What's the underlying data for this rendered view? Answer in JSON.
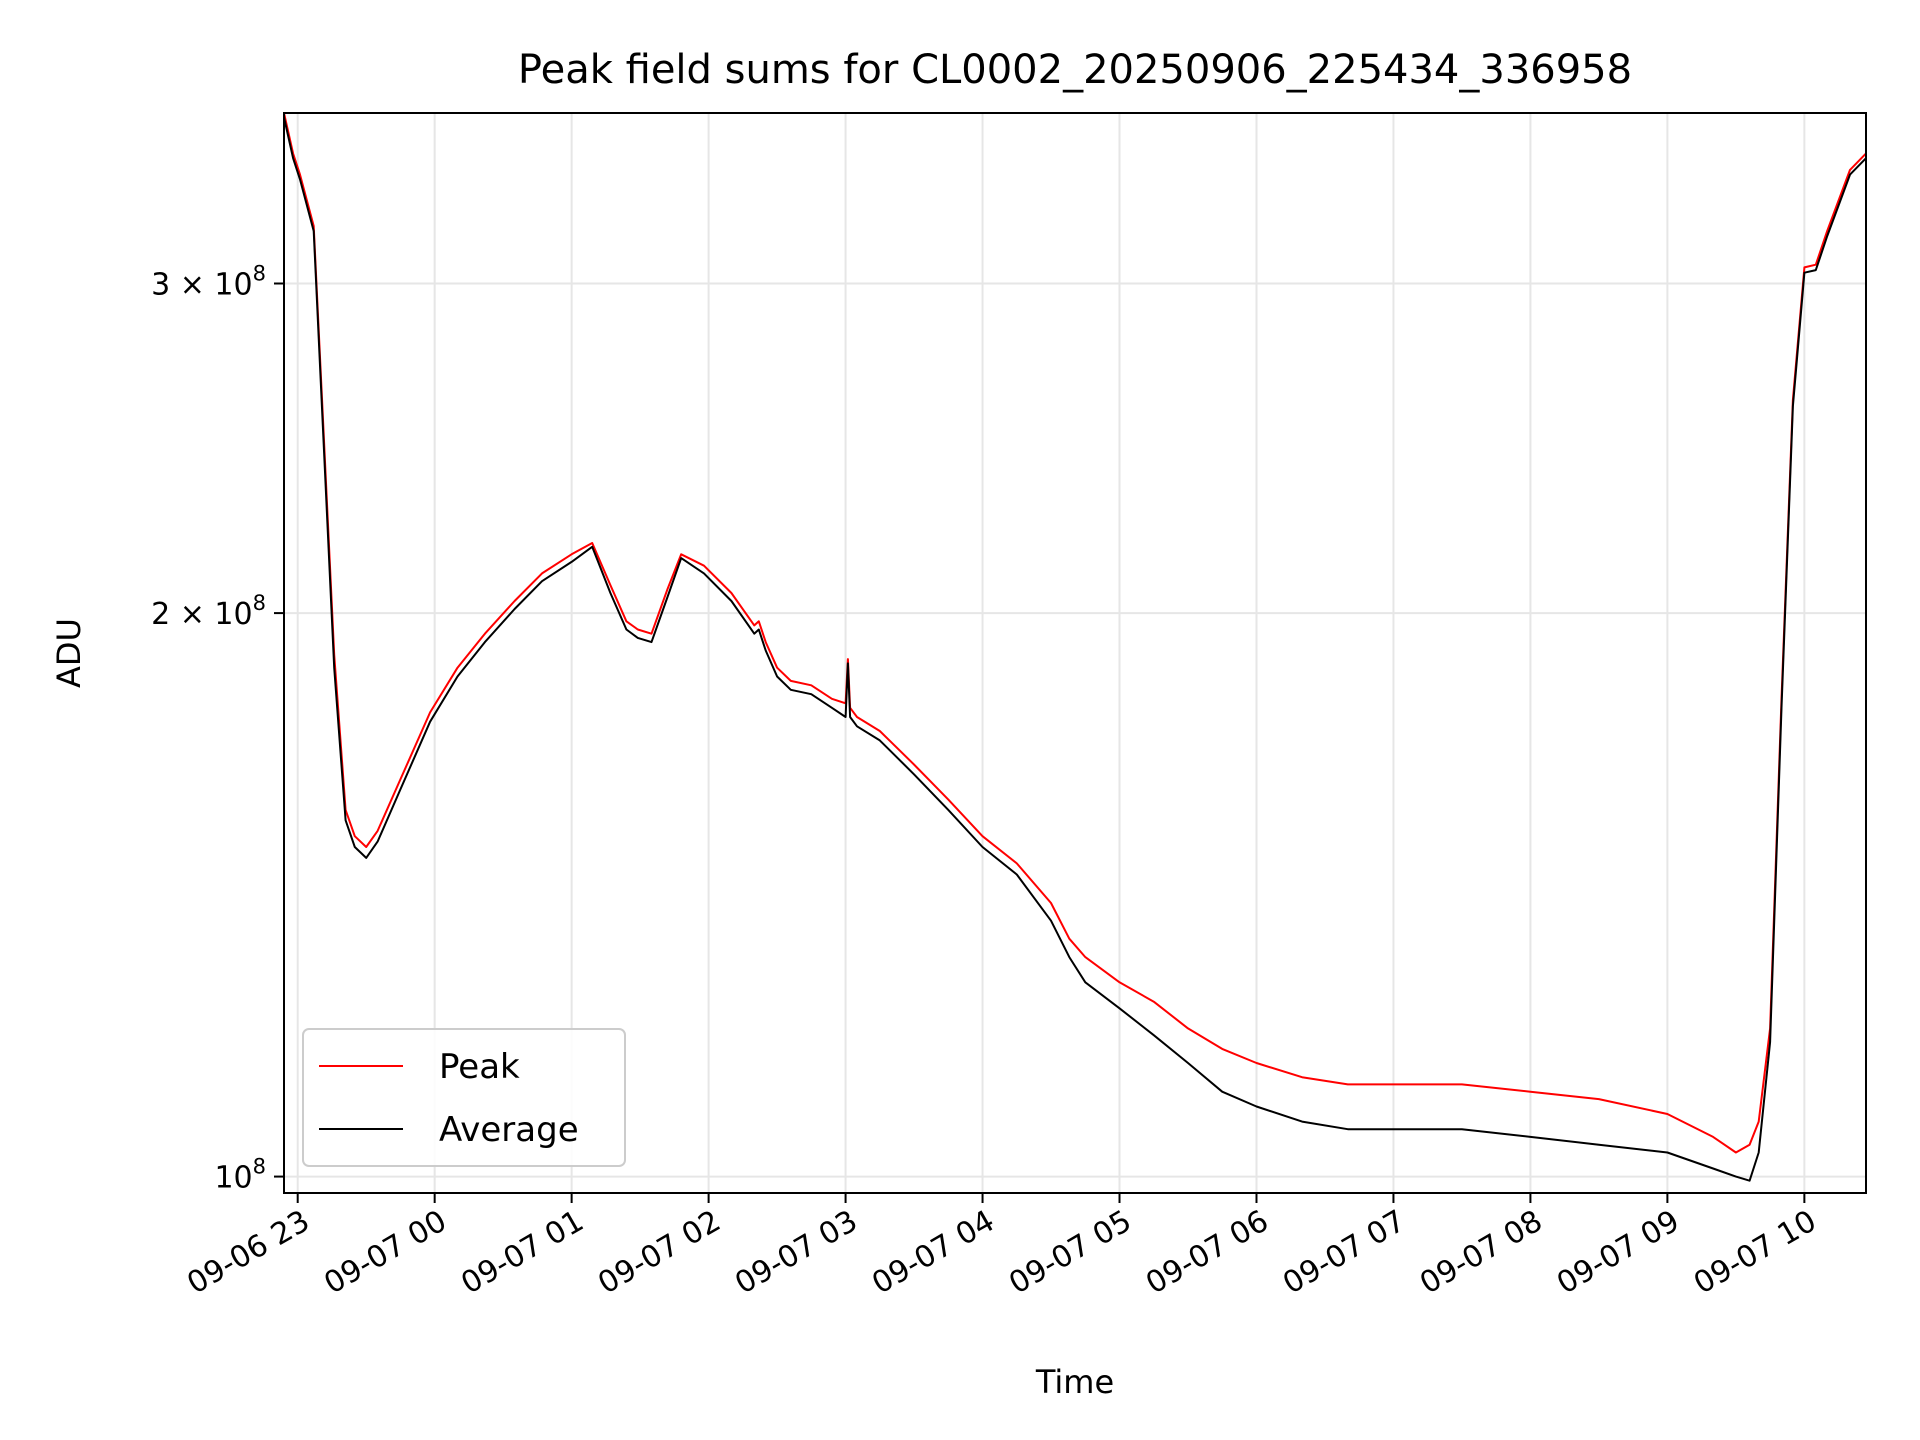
{
  "chart_data": {
    "type": "line",
    "title": "Peak field sums for CL0002_20250906_225434_336958",
    "xlabel": "Time",
    "ylabel": "ADU",
    "y_scale": "log",
    "grid": true,
    "legend_position": "lower-left",
    "xlim": [
      "09-06 22:54",
      "09-07 10:27"
    ],
    "ylim": [
      98000000,
      370000000
    ],
    "x_ticks": [
      "09-06 23",
      "09-07 00",
      "09-07 01",
      "09-07 02",
      "09-07 03",
      "09-07 04",
      "09-07 05",
      "09-07 06",
      "09-07 07",
      "09-07 08",
      "09-07 09",
      "09-07 10"
    ],
    "y_ticks": [
      {
        "value": 100000000,
        "label": "10⁸",
        "base": "10",
        "exp": "8",
        "coef": ""
      },
      {
        "value": 200000000,
        "label": "2 × 10⁸",
        "base": "10",
        "exp": "8",
        "coef": "2"
      },
      {
        "value": 300000000,
        "label": "3 × 10⁸",
        "base": "10",
        "exp": "8",
        "coef": "3"
      }
    ],
    "series": [
      {
        "name": "Peak",
        "color": "#ff0000",
        "points": [
          [
            "09-06 22:54",
            370000000
          ],
          [
            "09-06 22:58",
            352000000
          ],
          [
            "09-06 23:01",
            343000000
          ],
          [
            "09-06 23:07",
            322000000
          ],
          [
            "09-06 23:11",
            255000000
          ],
          [
            "09-06 23:16",
            190000000
          ],
          [
            "09-06 23:21",
            157000000
          ],
          [
            "09-06 23:25",
            152000000
          ],
          [
            "09-06 23:30",
            150000000
          ],
          [
            "09-06 23:35",
            153000000
          ],
          [
            "09-06 23:45",
            163000000
          ],
          [
            "09-06 23:58",
            177000000
          ],
          [
            "09-07 00:10",
            187000000
          ],
          [
            "09-07 00:22",
            195000000
          ],
          [
            "09-07 00:35",
            203000000
          ],
          [
            "09-07 00:47",
            210000000
          ],
          [
            "09-07 01:00",
            215000000
          ],
          [
            "09-07 01:09",
            218000000
          ],
          [
            "09-07 01:17",
            207000000
          ],
          [
            "09-07 01:24",
            198000000
          ],
          [
            "09-07 01:29",
            196000000
          ],
          [
            "09-07 01:35",
            195000000
          ],
          [
            "09-07 01:42",
            206000000
          ],
          [
            "09-07 01:48",
            215000000
          ],
          [
            "09-07 01:58",
            212000000
          ],
          [
            "09-07 02:10",
            205000000
          ],
          [
            "09-07 02:20",
            197000000
          ],
          [
            "09-07 02:22",
            198000000
          ],
          [
            "09-07 02:25",
            193000000
          ],
          [
            "09-07 02:30",
            187000000
          ],
          [
            "09-07 02:36",
            184000000
          ],
          [
            "09-07 02:45",
            183000000
          ],
          [
            "09-07 02:54",
            180000000
          ],
          [
            "09-07 03:00",
            179000000
          ],
          [
            "09-07 03:01",
            189000000
          ],
          [
            "09-07 03:02",
            178000000
          ],
          [
            "09-07 03:05",
            176000000
          ],
          [
            "09-07 03:15",
            173000000
          ],
          [
            "09-07 03:30",
            166000000
          ],
          [
            "09-07 03:45",
            159000000
          ],
          [
            "09-07 04:00",
            152000000
          ],
          [
            "09-07 04:15",
            147000000
          ],
          [
            "09-07 04:30",
            140000000
          ],
          [
            "09-07 04:38",
            134000000
          ],
          [
            "09-07 04:45",
            131000000
          ],
          [
            "09-07 05:00",
            127000000
          ],
          [
            "09-07 05:15",
            124000000
          ],
          [
            "09-07 05:30",
            120000000
          ],
          [
            "09-07 05:45",
            117000000
          ],
          [
            "09-07 06:00",
            115000000
          ],
          [
            "09-07 06:20",
            113000000
          ],
          [
            "09-07 06:40",
            112000000
          ],
          [
            "09-07 07:00",
            112000000
          ],
          [
            "09-07 07:30",
            112000000
          ],
          [
            "09-07 08:00",
            111000000
          ],
          [
            "09-07 08:30",
            110000000
          ],
          [
            "09-07 09:00",
            108000000
          ],
          [
            "09-07 09:20",
            105000000
          ],
          [
            "09-07 09:30",
            103000000
          ],
          [
            "09-07 09:36",
            104000000
          ],
          [
            "09-07 09:40",
            107000000
          ],
          [
            "09-07 09:45",
            120000000
          ],
          [
            "09-07 09:50",
            180000000
          ],
          [
            "09-07 09:55",
            260000000
          ],
          [
            "09-07 10:00",
            306000000
          ],
          [
            "09-07 10:05",
            307000000
          ],
          [
            "09-07 10:10",
            320000000
          ],
          [
            "09-07 10:20",
            345000000
          ],
          [
            "09-07 10:27",
            352000000
          ]
        ]
      },
      {
        "name": "Average",
        "color": "#000000",
        "points": [
          [
            "09-06 22:54",
            368000000
          ],
          [
            "09-06 22:58",
            350000000
          ],
          [
            "09-06 23:01",
            341000000
          ],
          [
            "09-06 23:07",
            320000000
          ],
          [
            "09-06 23:11",
            252000000
          ],
          [
            "09-06 23:16",
            187000000
          ],
          [
            "09-06 23:21",
            155000000
          ],
          [
            "09-06 23:25",
            150000000
          ],
          [
            "09-06 23:30",
            148000000
          ],
          [
            "09-06 23:35",
            151000000
          ],
          [
            "09-06 23:45",
            161000000
          ],
          [
            "09-06 23:58",
            175000000
          ],
          [
            "09-07 00:10",
            185000000
          ],
          [
            "09-07 00:22",
            193000000
          ],
          [
            "09-07 00:35",
            201000000
          ],
          [
            "09-07 00:47",
            208000000
          ],
          [
            "09-07 01:00",
            213000000
          ],
          [
            "09-07 01:09",
            217000000
          ],
          [
            "09-07 01:17",
            205000000
          ],
          [
            "09-07 01:24",
            196000000
          ],
          [
            "09-07 01:29",
            194000000
          ],
          [
            "09-07 01:35",
            193000000
          ],
          [
            "09-07 01:42",
            204000000
          ],
          [
            "09-07 01:48",
            214000000
          ],
          [
            "09-07 01:58",
            210000000
          ],
          [
            "09-07 02:10",
            203000000
          ],
          [
            "09-07 02:20",
            195000000
          ],
          [
            "09-07 02:22",
            196000000
          ],
          [
            "09-07 02:25",
            191000000
          ],
          [
            "09-07 02:30",
            185000000
          ],
          [
            "09-07 02:36",
            182000000
          ],
          [
            "09-07 02:45",
            181000000
          ],
          [
            "09-07 02:54",
            178000000
          ],
          [
            "09-07 03:00",
            176000000
          ],
          [
            "09-07 03:01",
            188000000
          ],
          [
            "09-07 03:02",
            176000000
          ],
          [
            "09-07 03:05",
            174000000
          ],
          [
            "09-07 03:15",
            171000000
          ],
          [
            "09-07 03:30",
            164000000
          ],
          [
            "09-07 03:45",
            157000000
          ],
          [
            "09-07 04:00",
            150000000
          ],
          [
            "09-07 04:15",
            145000000
          ],
          [
            "09-07 04:30",
            137000000
          ],
          [
            "09-07 04:38",
            131000000
          ],
          [
            "09-07 04:45",
            127000000
          ],
          [
            "09-07 05:00",
            123000000
          ],
          [
            "09-07 05:15",
            119000000
          ],
          [
            "09-07 05:30",
            115000000
          ],
          [
            "09-07 05:45",
            111000000
          ],
          [
            "09-07 06:00",
            109000000
          ],
          [
            "09-07 06:20",
            107000000
          ],
          [
            "09-07 06:40",
            106000000
          ],
          [
            "09-07 07:00",
            106000000
          ],
          [
            "09-07 07:30",
            106000000
          ],
          [
            "09-07 08:00",
            105000000
          ],
          [
            "09-07 08:30",
            104000000
          ],
          [
            "09-07 09:00",
            103000000
          ],
          [
            "09-07 09:20",
            101000000
          ],
          [
            "09-07 09:30",
            100000000
          ],
          [
            "09-07 09:36",
            99500000
          ],
          [
            "09-07 09:40",
            103000000
          ],
          [
            "09-07 09:45",
            118000000
          ],
          [
            "09-07 09:50",
            178000000
          ],
          [
            "09-07 09:55",
            258000000
          ],
          [
            "09-07 10:00",
            304000000
          ],
          [
            "09-07 10:05",
            305000000
          ],
          [
            "09-07 10:10",
            318000000
          ],
          [
            "09-07 10:20",
            343000000
          ],
          [
            "09-07 10:27",
            350000000
          ]
        ]
      }
    ]
  }
}
